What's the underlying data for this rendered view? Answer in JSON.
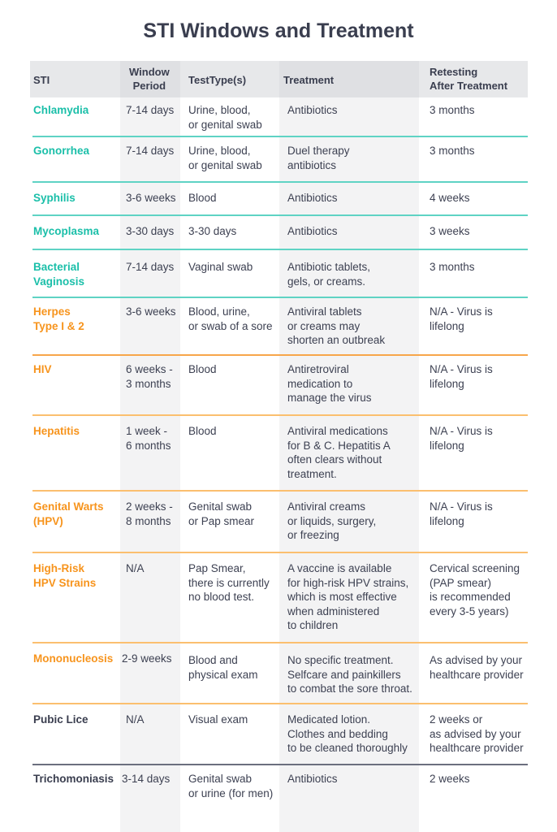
{
  "title": "STI Windows and Treatment",
  "colors": {
    "teal": "#1bbfa9",
    "orange": "#f7941d",
    "dark": "#3a3e4f"
  },
  "headers": [
    "STI",
    "Window\nPeriod",
    "TestType(s)",
    "Treatment",
    "Retesting\nAfter Treatment"
  ],
  "rows": [
    {
      "sti": "Chlamydia",
      "window": "7-14 days",
      "test": "Urine, blood,\nor genital swab",
      "treatment": "Antibiotics",
      "retest": "3 months",
      "color": "teal"
    },
    {
      "sti": "Gonorrhea",
      "window": "7-14 days",
      "test": "Urine, blood,\nor genital swab",
      "treatment": "Duel therapy\nantibiotics",
      "retest": "3 months",
      "color": "teal"
    },
    {
      "sti": "Syphilis",
      "window": "3-6 weeks",
      "test": "Blood",
      "treatment": "Antibiotics",
      "retest": "4 weeks",
      "color": "teal"
    },
    {
      "sti": "Mycoplasma",
      "window": "3-30 days",
      "test": "3-30 days",
      "treatment": "Antibiotics",
      "retest": "3 weeks",
      "color": "teal"
    },
    {
      "sti": "Bacterial\nVaginosis",
      "window": "7-14 days",
      "test": "Vaginal swab",
      "treatment": "Antibiotic tablets,\ngels, or creams.",
      "retest": "3 months",
      "color": "teal"
    },
    {
      "sti": "Herpes\nType I & 2",
      "window": "3-6 weeks",
      "test": "Blood, urine,\nor swab of a sore",
      "treatment": "Antiviral tablets\nor creams may\nshorten an outbreak",
      "retest": "N/A - Virus is\nlifelong",
      "color": "orange"
    },
    {
      "sti": "HIV",
      "window": "6 weeks -\n3 months",
      "test": "Blood",
      "treatment": "Antiretroviral\nmedication to\nmanage the virus",
      "retest": "N/A - Virus is\nlifelong",
      "color": "orange"
    },
    {
      "sti": "Hepatitis",
      "window": "1 week -\n6 months",
      "test": "Blood",
      "treatment": "Antiviral medications\nfor B & C. Hepatitis A\noften clears without\ntreatment.",
      "retest": "N/A - Virus is\nlifelong",
      "color": "orange"
    },
    {
      "sti": "Genital Warts\n(HPV)",
      "window": "2 weeks -\n8 months",
      "test": "Genital swab\nor Pap smear",
      "treatment": "Antiviral creams\nor liquids, surgery,\nor freezing",
      "retest": "N/A - Virus is\nlifelong",
      "color": "orange"
    },
    {
      "sti": "High-Risk\nHPV Strains",
      "window": "N/A",
      "test": "Pap Smear,\nthere is currently\nno blood test.",
      "treatment": "A vaccine is available\nfor high-risk HPV strains,\nwhich is most effective\nwhen administered\nto children",
      "retest": "Cervical screening\n(PAP smear)\nis recommended\nevery 3-5 years)",
      "color": "orange"
    },
    {
      "sti": "Mononucleosis",
      "window": "2-9 weeks",
      "test": "Blood and\nphysical exam",
      "treatment": "No specific treatment.\nSelfcare and painkillers\nto combat the sore throat.",
      "retest": "As advised by your\nhealthcare provider",
      "color": "orange"
    },
    {
      "sti": "Pubic Lice",
      "window": "N/A",
      "test": "Visual exam",
      "treatment": "Medicated lotion.\nClothes and bedding\nto be cleaned thoroughly",
      "retest": "2 weeks or\nas advised by your\n healthcare provider",
      "color": "dark"
    },
    {
      "sti": "Trichomoniasis",
      "window": "3-14 days",
      "test": "Genital swab\nor urine (for men)",
      "treatment": "Antibiotics",
      "retest": "2 weeks",
      "color": "dark"
    }
  ]
}
